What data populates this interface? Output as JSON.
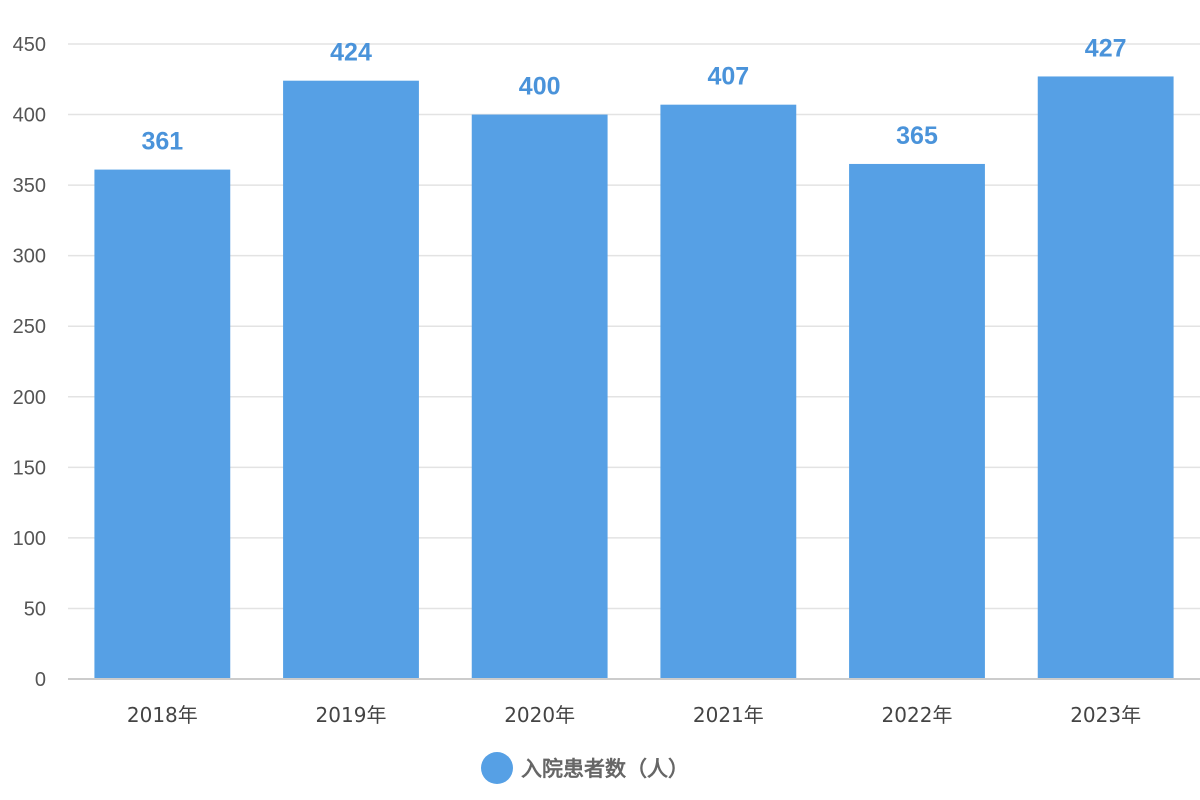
{
  "chart_data": {
    "type": "bar",
    "categories": [
      "2018年",
      "2019年",
      "2020年",
      "2021年",
      "2022年",
      "2023年"
    ],
    "series": [
      {
        "name": "入院患者数（人）",
        "values": [
          361,
          424,
          400,
          407,
          365,
          427
        ]
      }
    ],
    "y_ticks": [
      "0",
      "50",
      "100",
      "150",
      "200",
      "250",
      "300",
      "350",
      "400",
      "450"
    ],
    "ylim": [
      0,
      450
    ],
    "y_step": 50,
    "grid": true,
    "legend_position": "bottom-center",
    "data_labels": true,
    "title": "",
    "xlabel": "",
    "ylabel": "",
    "colors": {
      "bar": "#56a0e5",
      "label": "#4a93da",
      "grid": "#e3e3e3",
      "axis": "#cccccc"
    }
  }
}
